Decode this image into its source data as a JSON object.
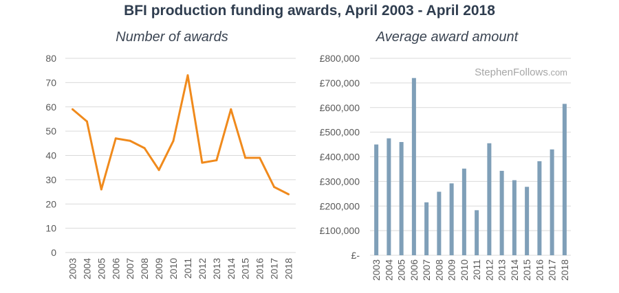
{
  "title": "BFI production funding awards, April 2003 - April 2018",
  "watermark": {
    "main": "StephenFollows",
    "suffix": ".com"
  },
  "colors": {
    "line": "#f08a1c",
    "bar": "#7f9fb8",
    "grid": "#d9d9d9"
  },
  "chart_data": [
    {
      "type": "line",
      "title": "Number of awards",
      "x": [
        "2003",
        "2004",
        "2005",
        "2006",
        "2007",
        "2008",
        "2009",
        "2010",
        "2011",
        "2012",
        "2013",
        "2014",
        "2015",
        "2016",
        "2017",
        "2018"
      ],
      "series": [
        {
          "values": [
            59,
            54,
            26,
            47,
            46,
            43,
            34,
            46,
            73,
            37,
            38,
            59,
            39,
            39,
            27,
            24
          ]
        }
      ],
      "ylim": [
        0,
        80
      ],
      "yticks": [
        0,
        10,
        20,
        30,
        40,
        50,
        60,
        70,
        80
      ],
      "ytick_labels": [
        "0",
        "10",
        "20",
        "30",
        "40",
        "50",
        "60",
        "70",
        "80"
      ],
      "grid": true
    },
    {
      "type": "bar",
      "title": "Average award amount",
      "categories": [
        "2003",
        "2004",
        "2005",
        "2006",
        "2007",
        "2008",
        "2009",
        "2010",
        "2011",
        "2012",
        "2013",
        "2014",
        "2015",
        "2016",
        "2017",
        "2018"
      ],
      "values": [
        450000,
        475000,
        460000,
        720000,
        215000,
        258000,
        292000,
        352000,
        183000,
        455000,
        343000,
        305000,
        278000,
        382000,
        430000,
        615000
      ],
      "ylim": [
        0,
        800000
      ],
      "yticks": [
        0,
        100000,
        200000,
        300000,
        400000,
        500000,
        600000,
        700000,
        800000
      ],
      "ytick_labels": [
        "£-",
        "£100,000",
        "£200,000",
        "£300,000",
        "£400,000",
        "£500,000",
        "£600,000",
        "£700,000",
        "£800,000"
      ],
      "grid": true
    }
  ]
}
